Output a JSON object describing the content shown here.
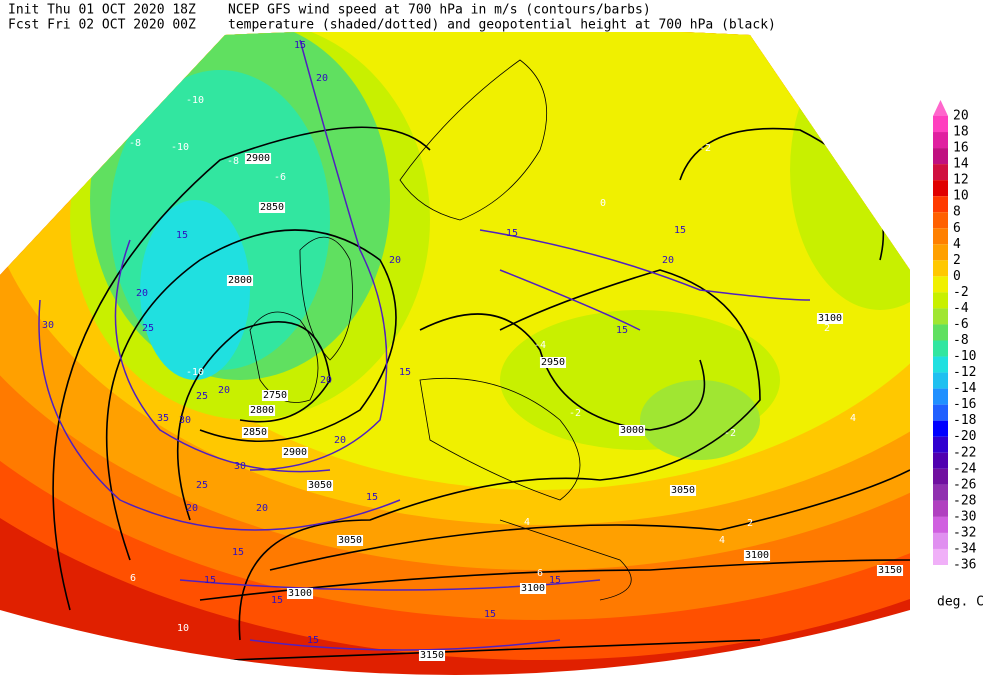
{
  "header": {
    "init": "Init  Thu 01 OCT 2020 18Z",
    "forecast": "Fcst Fri 02 OCT 2020 00Z",
    "title": "NCEP GFS wind speed at 700 hPa in m/s (contours/barbs)",
    "subtitle": "temperature (shaded/dotted) and geopotential height at 700 hPa (black)"
  },
  "colorbar": {
    "levels": [
      20,
      18,
      16,
      14,
      12,
      10,
      8,
      6,
      4,
      2,
      0,
      -2,
      -4,
      -6,
      -8,
      -10,
      -12,
      -14,
      -16,
      -18,
      -20,
      -22,
      -24,
      -26,
      -28,
      -30,
      -32,
      -34,
      -36
    ],
    "colors": [
      "#ff3fbf",
      "#e020a0",
      "#c01080",
      "#d01040",
      "#e00000",
      "#ff3a00",
      "#ff6000",
      "#ff8000",
      "#ffa000",
      "#ffc800",
      "#f0f000",
      "#c8f000",
      "#a0e632",
      "#60e060",
      "#32e6a0",
      "#20e0e0",
      "#20c0f0",
      "#2090ff",
      "#2060ff",
      "#0000ff",
      "#3000d0",
      "#5000b0",
      "#7010a0",
      "#9030b0",
      "#b040c0",
      "#d060e0",
      "#e090f0",
      "#f0b0f8"
    ],
    "unit": "deg. C"
  },
  "height_labels": [
    2900,
    2850,
    2800,
    2750,
    2800,
    2850,
    2900,
    2950,
    3000,
    3050,
    3050,
    3050,
    3100,
    3100,
    3100,
    3100,
    3150,
    3150
  ],
  "wind_labels": [
    15,
    20,
    15,
    20,
    25,
    30,
    25,
    20,
    30,
    35,
    30,
    25,
    20,
    20,
    15,
    15,
    15,
    15,
    15,
    15,
    15,
    15,
    20,
    15,
    15,
    15,
    20,
    20,
    20
  ],
  "temperature_labels": [
    -10,
    -8,
    -10,
    -6,
    -8,
    -10,
    -4,
    -2,
    -2,
    -2,
    0,
    2,
    4,
    2,
    4,
    6,
    10,
    4,
    6
  ]
}
